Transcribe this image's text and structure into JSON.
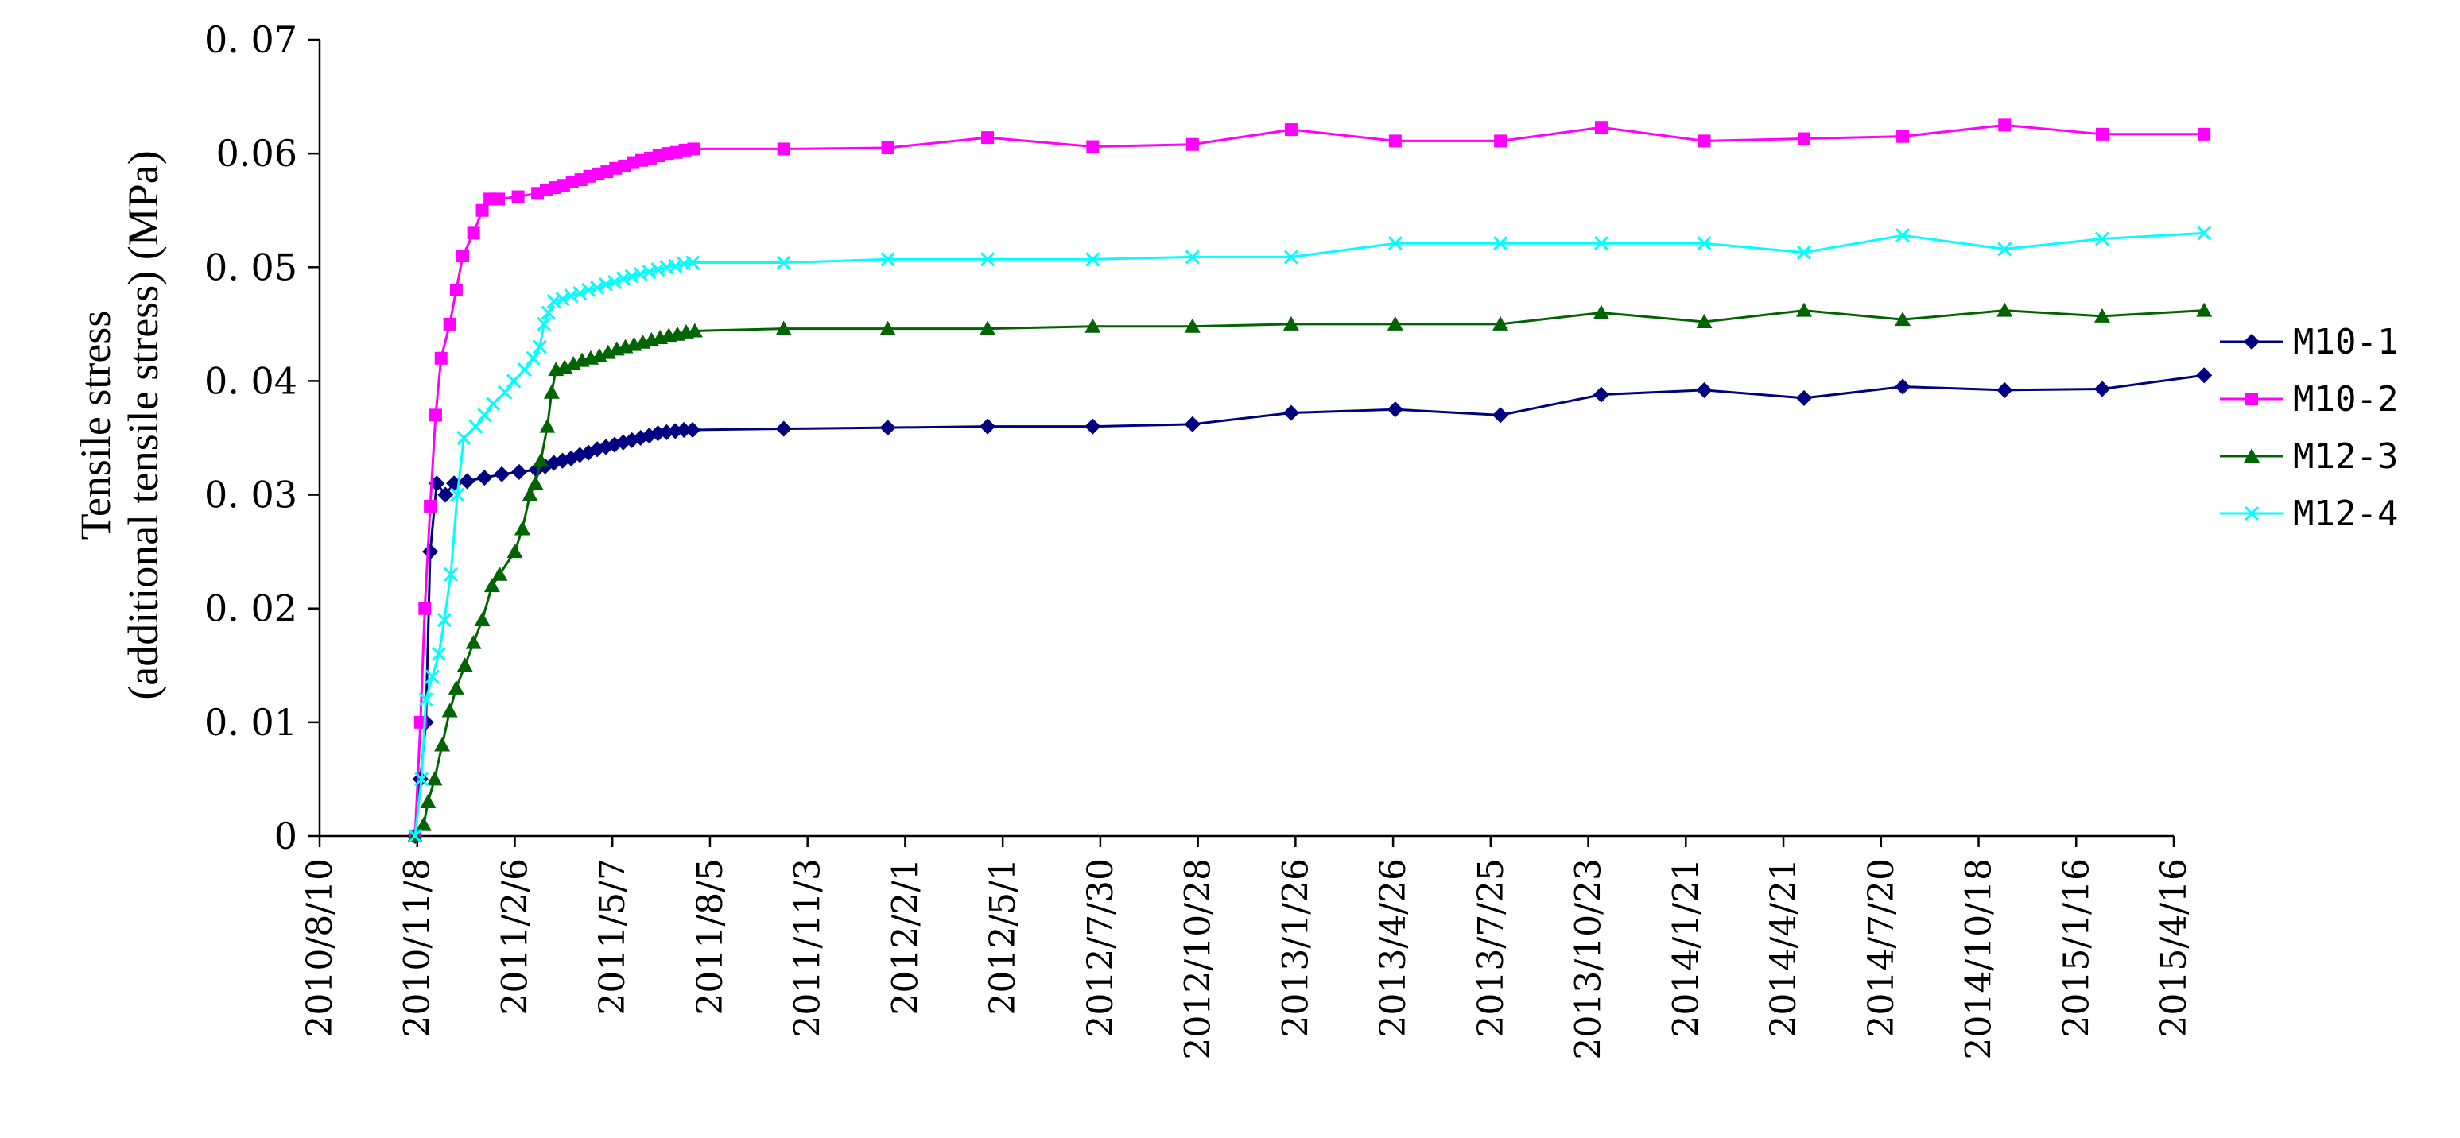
{
  "chart_data": {
    "type": "line",
    "ylabel_line1": "Tensile stress",
    "ylabel_line2": "(additional tensile stress) (MPa)",
    "xlabel": "",
    "title": "",
    "ylim": [
      0,
      0.07
    ],
    "y_ticks": [
      "0",
      "0. 01",
      "0. 02",
      "0. 03",
      "0. 04",
      "0. 05",
      "0.06",
      "0. 07"
    ],
    "y_tick_values": [
      0,
      0.01,
      0.02,
      0.03,
      0.04,
      0.05,
      0.06,
      0.07
    ],
    "x_ticks": [
      "2010/8/10",
      "2010/11/8",
      "2011/2/6",
      "2011/5/7",
      "2011/8/5",
      "2011/11/3",
      "2012/2/1",
      "2012/5/1",
      "2012/7/30",
      "2012/10/28",
      "2013/1/26",
      "2013/4/26",
      "2013/7/25",
      "2013/10/23",
      "2014/1/21",
      "2014/4/21",
      "2014/7/20",
      "2014/10/18",
      "2015/1/16",
      "2015/4/16"
    ],
    "x_tick_dates": [
      "2010-08-10",
      "2010-11-08",
      "2011-02-06",
      "2011-05-07",
      "2011-08-05",
      "2011-11-03",
      "2012-02-01",
      "2012-05-01",
      "2012-07-30",
      "2012-10-28",
      "2013-01-26",
      "2013-04-26",
      "2013-07-25",
      "2013-10-23",
      "2014-01-21",
      "2014-04-21",
      "2014-07-20",
      "2014-10-18",
      "2015-01-16",
      "2015-04-16"
    ],
    "legend_position": "right",
    "grid": false,
    "series": [
      {
        "name": "M10-1",
        "color": "#000080",
        "marker": "diamond",
        "points": [
          [
            "2010-11-06",
            0.0
          ],
          [
            "2010-11-11",
            0.005
          ],
          [
            "2010-11-16",
            0.01
          ],
          [
            "2010-11-20",
            0.025
          ],
          [
            "2010-11-26",
            0.031
          ],
          [
            "2010-12-04",
            0.03
          ],
          [
            "2010-12-12",
            0.031
          ],
          [
            "2010-12-24",
            0.0312
          ],
          [
            "2011-01-09",
            0.0315
          ],
          [
            "2011-01-25",
            0.0318
          ],
          [
            "2011-02-10",
            0.032
          ],
          [
            "2011-02-26",
            0.0322
          ],
          [
            "2011-03-06",
            0.0325
          ],
          [
            "2011-03-14",
            0.0328
          ],
          [
            "2011-03-22",
            0.033
          ],
          [
            "2011-03-30",
            0.0332
          ],
          [
            "2011-04-07",
            0.0335
          ],
          [
            "2011-04-15",
            0.0337
          ],
          [
            "2011-04-23",
            0.034
          ],
          [
            "2011-05-01",
            0.0342
          ],
          [
            "2011-05-09",
            0.0344
          ],
          [
            "2011-05-17",
            0.0346
          ],
          [
            "2011-05-25",
            0.0348
          ],
          [
            "2011-06-02",
            0.035
          ],
          [
            "2011-06-10",
            0.0352
          ],
          [
            "2011-06-18",
            0.0354
          ],
          [
            "2011-06-26",
            0.0355
          ],
          [
            "2011-07-04",
            0.0356
          ],
          [
            "2011-07-12",
            0.0357
          ],
          [
            "2011-07-20",
            0.0357
          ],
          [
            "2011-10-12",
            0.0358
          ],
          [
            "2012-01-16",
            0.0359
          ],
          [
            "2012-04-17",
            0.036
          ],
          [
            "2012-07-23",
            0.036
          ],
          [
            "2012-10-23",
            0.0362
          ],
          [
            "2013-01-22",
            0.0372
          ],
          [
            "2013-04-28",
            0.0375
          ],
          [
            "2013-08-03",
            0.037
          ],
          [
            "2013-11-04",
            0.0388
          ],
          [
            "2014-02-07",
            0.0392
          ],
          [
            "2014-05-10",
            0.0385
          ],
          [
            "2014-08-09",
            0.0395
          ],
          [
            "2014-11-11",
            0.0392
          ],
          [
            "2015-02-09",
            0.0393
          ],
          [
            "2015-05-14",
            0.0405
          ]
        ]
      },
      {
        "name": "M10-2",
        "color": "#ff00ff",
        "marker": "square",
        "points": [
          [
            "2010-11-06",
            0.0
          ],
          [
            "2010-11-11",
            0.01
          ],
          [
            "2010-11-15",
            0.02
          ],
          [
            "2010-11-20",
            0.029
          ],
          [
            "2010-11-25",
            0.037
          ],
          [
            "2010-11-30",
            0.042
          ],
          [
            "2010-12-08",
            0.045
          ],
          [
            "2010-12-14",
            0.048
          ],
          [
            "2010-12-20",
            0.051
          ],
          [
            "2010-12-30",
            0.053
          ],
          [
            "2011-01-07",
            0.055
          ],
          [
            "2011-01-14",
            0.056
          ],
          [
            "2011-01-22",
            0.056
          ],
          [
            "2011-02-09",
            0.0562
          ],
          [
            "2011-02-27",
            0.0565
          ],
          [
            "2011-03-07",
            0.0568
          ],
          [
            "2011-03-15",
            0.057
          ],
          [
            "2011-03-23",
            0.0572
          ],
          [
            "2011-03-31",
            0.0575
          ],
          [
            "2011-04-08",
            0.0577
          ],
          [
            "2011-04-16",
            0.058
          ],
          [
            "2011-04-24",
            0.0582
          ],
          [
            "2011-05-02",
            0.0584
          ],
          [
            "2011-05-10",
            0.0587
          ],
          [
            "2011-05-18",
            0.0589
          ],
          [
            "2011-05-26",
            0.0592
          ],
          [
            "2011-06-03",
            0.0594
          ],
          [
            "2011-06-11",
            0.0596
          ],
          [
            "2011-06-19",
            0.0598
          ],
          [
            "2011-06-27",
            0.06
          ],
          [
            "2011-07-05",
            0.0601
          ],
          [
            "2011-07-13",
            0.0603
          ],
          [
            "2011-07-21",
            0.0604
          ],
          [
            "2011-10-12",
            0.0604
          ],
          [
            "2012-01-16",
            0.0605
          ],
          [
            "2012-04-17",
            0.0614
          ],
          [
            "2012-07-23",
            0.0606
          ],
          [
            "2012-10-23",
            0.0608
          ],
          [
            "2013-01-22",
            0.0621
          ],
          [
            "2013-04-28",
            0.0611
          ],
          [
            "2013-08-03",
            0.0611
          ],
          [
            "2013-11-04",
            0.0623
          ],
          [
            "2014-02-07",
            0.0611
          ],
          [
            "2014-05-10",
            0.0613
          ],
          [
            "2014-08-09",
            0.0615
          ],
          [
            "2014-11-11",
            0.0625
          ],
          [
            "2015-02-09",
            0.0617
          ],
          [
            "2015-05-14",
            0.0617
          ]
        ]
      },
      {
        "name": "M12-3",
        "color": "#006400",
        "marker": "triangle",
        "points": [
          [
            "2010-11-06",
            0.0
          ],
          [
            "2010-11-14",
            0.001
          ],
          [
            "2010-11-18",
            0.003
          ],
          [
            "2010-11-24",
            0.005
          ],
          [
            "2010-12-01",
            0.008
          ],
          [
            "2010-12-08",
            0.011
          ],
          [
            "2010-12-14",
            0.013
          ],
          [
            "2010-12-22",
            0.015
          ],
          [
            "2010-12-30",
            0.017
          ],
          [
            "2011-01-07",
            0.019
          ],
          [
            "2011-01-16",
            0.022
          ],
          [
            "2011-01-23",
            0.023
          ],
          [
            "2011-02-06",
            0.025
          ],
          [
            "2011-02-13",
            0.027
          ],
          [
            "2011-02-20",
            0.03
          ],
          [
            "2011-02-25",
            0.031
          ],
          [
            "2011-03-02",
            0.033
          ],
          [
            "2011-03-08",
            0.036
          ],
          [
            "2011-03-12",
            0.039
          ],
          [
            "2011-03-16",
            0.041
          ],
          [
            "2011-03-24",
            0.0412
          ],
          [
            "2011-04-01",
            0.0415
          ],
          [
            "2011-04-09",
            0.0418
          ],
          [
            "2011-04-17",
            0.042
          ],
          [
            "2011-04-25",
            0.0422
          ],
          [
            "2011-05-03",
            0.0425
          ],
          [
            "2011-05-11",
            0.0428
          ],
          [
            "2011-05-19",
            0.043
          ],
          [
            "2011-05-27",
            0.0432
          ],
          [
            "2011-06-04",
            0.0434
          ],
          [
            "2011-06-12",
            0.0436
          ],
          [
            "2011-06-20",
            0.0438
          ],
          [
            "2011-06-28",
            0.044
          ],
          [
            "2011-07-06",
            0.0441
          ],
          [
            "2011-07-14",
            0.0443
          ],
          [
            "2011-07-22",
            0.0444
          ],
          [
            "2011-10-12",
            0.0446
          ],
          [
            "2012-01-16",
            0.0446
          ],
          [
            "2012-04-17",
            0.0446
          ],
          [
            "2012-07-23",
            0.0448
          ],
          [
            "2012-10-23",
            0.0448
          ],
          [
            "2013-01-22",
            0.045
          ],
          [
            "2013-04-28",
            0.045
          ],
          [
            "2013-08-03",
            0.045
          ],
          [
            "2013-11-04",
            0.046
          ],
          [
            "2014-02-07",
            0.0452
          ],
          [
            "2014-05-10",
            0.0462
          ],
          [
            "2014-08-09",
            0.0454
          ],
          [
            "2014-11-11",
            0.0462
          ],
          [
            "2015-02-09",
            0.0457
          ],
          [
            "2015-05-14",
            0.0462
          ]
        ]
      },
      {
        "name": "M12-4",
        "color": "#00ffff",
        "marker": "x",
        "points": [
          [
            "2010-11-06",
            0.0
          ],
          [
            "2010-11-12",
            0.005
          ],
          [
            "2010-11-16",
            0.012
          ],
          [
            "2010-11-22",
            0.014
          ],
          [
            "2010-11-28",
            0.016
          ],
          [
            "2010-12-03",
            0.019
          ],
          [
            "2010-12-09",
            0.023
          ],
          [
            "2010-12-15",
            0.03
          ],
          [
            "2010-12-21",
            0.035
          ],
          [
            "2011-01-01",
            0.036
          ],
          [
            "2011-01-09",
            0.037
          ],
          [
            "2011-01-17",
            0.038
          ],
          [
            "2011-01-28",
            0.039
          ],
          [
            "2011-02-05",
            0.04
          ],
          [
            "2011-02-15",
            0.041
          ],
          [
            "2011-02-23",
            0.042
          ],
          [
            "2011-03-01",
            0.043
          ],
          [
            "2011-03-05",
            0.045
          ],
          [
            "2011-03-09",
            0.046
          ],
          [
            "2011-03-14",
            0.047
          ],
          [
            "2011-03-22",
            0.0472
          ],
          [
            "2011-03-30",
            0.0475
          ],
          [
            "2011-04-07",
            0.0477
          ],
          [
            "2011-04-15",
            0.048
          ],
          [
            "2011-04-23",
            0.0482
          ],
          [
            "2011-05-01",
            0.0485
          ],
          [
            "2011-05-09",
            0.0487
          ],
          [
            "2011-05-17",
            0.049
          ],
          [
            "2011-05-25",
            0.0492
          ],
          [
            "2011-06-02",
            0.0494
          ],
          [
            "2011-06-10",
            0.0496
          ],
          [
            "2011-06-18",
            0.0498
          ],
          [
            "2011-06-26",
            0.05
          ],
          [
            "2011-07-04",
            0.0501
          ],
          [
            "2011-07-12",
            0.0503
          ],
          [
            "2011-07-20",
            0.0504
          ],
          [
            "2011-10-12",
            0.0504
          ],
          [
            "2012-01-16",
            0.0507
          ],
          [
            "2012-04-17",
            0.0507
          ],
          [
            "2012-07-23",
            0.0507
          ],
          [
            "2012-10-23",
            0.0509
          ],
          [
            "2013-01-22",
            0.0509
          ],
          [
            "2013-04-28",
            0.0521
          ],
          [
            "2013-08-03",
            0.0521
          ],
          [
            "2013-11-04",
            0.0521
          ],
          [
            "2014-02-07",
            0.0521
          ],
          [
            "2014-05-10",
            0.0513
          ],
          [
            "2014-08-09",
            0.0528
          ],
          [
            "2014-11-11",
            0.0516
          ],
          [
            "2015-02-09",
            0.0525
          ],
          [
            "2015-05-14",
            0.053
          ]
        ]
      }
    ]
  }
}
